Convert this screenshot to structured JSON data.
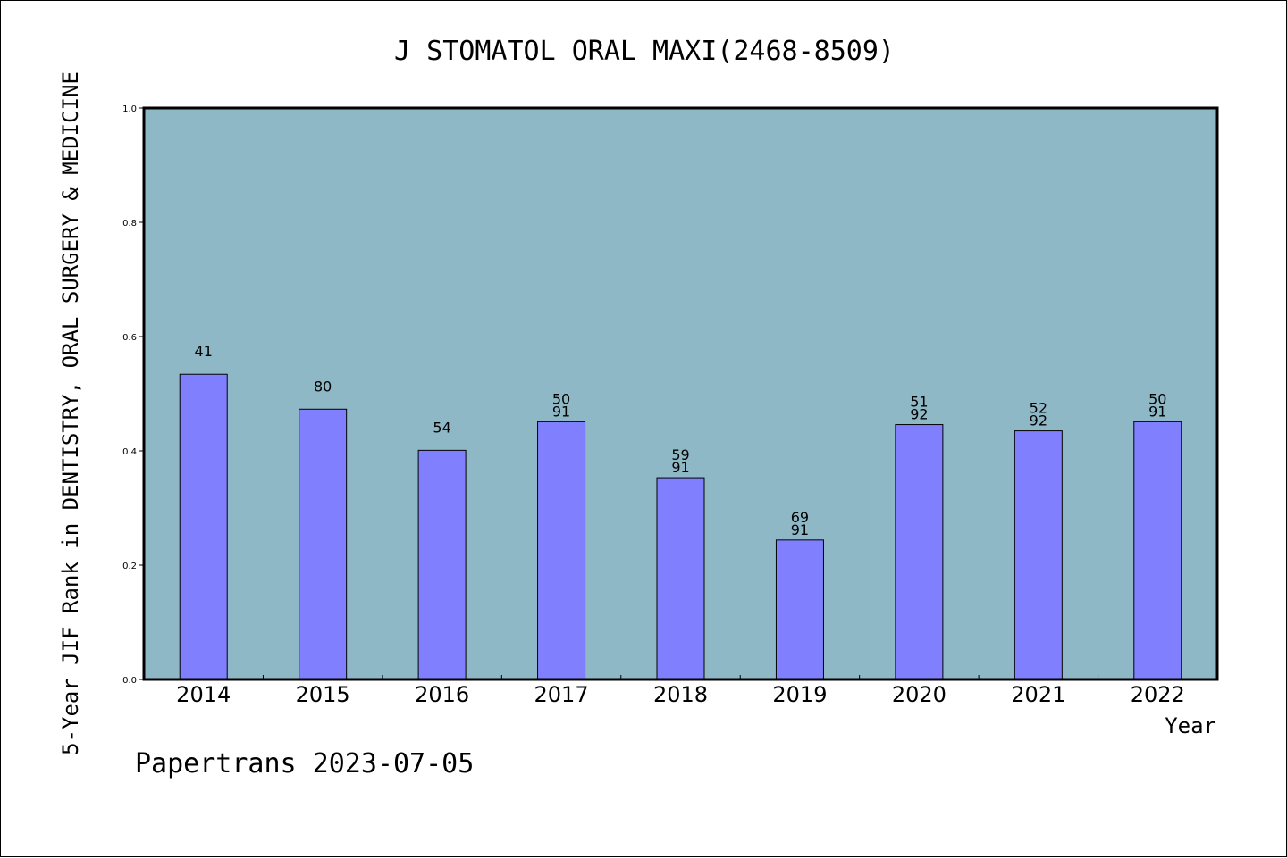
{
  "chart_data": {
    "type": "bar",
    "title": "J STOMATOL ORAL MAXI(2468-8509)",
    "ylabel": "5-Year JIF Rank in DENTISTRY, ORAL SURGERY & MEDICINE",
    "xlabel": "Year",
    "ylim": [
      0,
      1.0
    ],
    "yticks": [
      "0.0",
      "0.2",
      "0.4",
      "0.6",
      "0.8",
      "1.0"
    ],
    "categories": [
      "2014",
      "2015",
      "2016",
      "2017",
      "2018",
      "2019",
      "2020",
      "2021",
      "2022"
    ],
    "values": [
      0.534,
      0.473,
      0.401,
      0.451,
      0.353,
      0.244,
      0.446,
      0.435,
      0.451
    ],
    "bar_labels": [
      [
        "41"
      ],
      [
        "80"
      ],
      [
        "54"
      ],
      [
        "50",
        "91"
      ],
      [
        "59",
        "91"
      ],
      [
        "69",
        "91"
      ],
      [
        "51",
        "92"
      ],
      [
        "52",
        "92"
      ],
      [
        "50",
        "91"
      ]
    ],
    "grid": false,
    "colors": {
      "plot_background": "#8fb8c7",
      "bar_fill": "#8080ff",
      "bar_stroke": "#000000",
      "axis": "#000000"
    }
  },
  "footer": {
    "watermark": "Papertrans 2023-07-05"
  }
}
